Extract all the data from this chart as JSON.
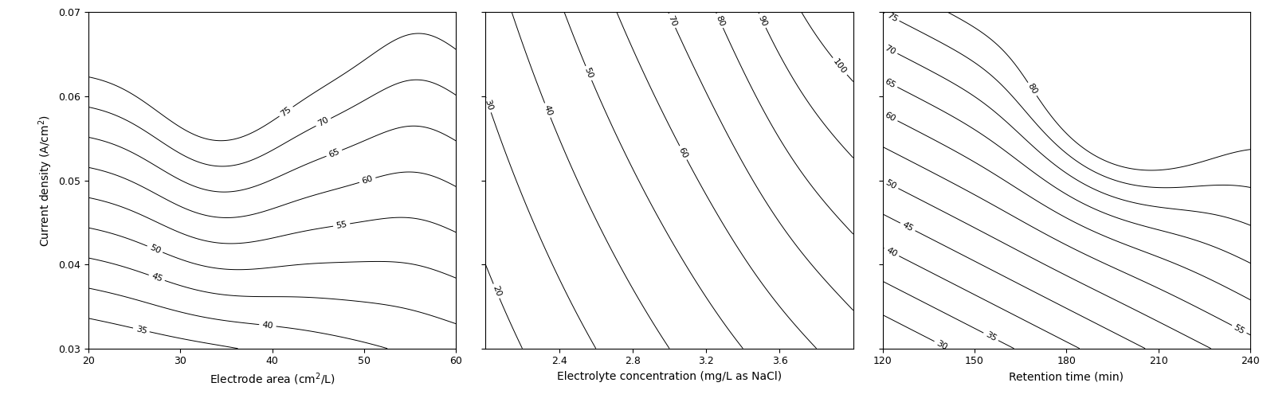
{
  "plot1": {
    "xlabel": "Electrode area (cm$^2$/L)",
    "xlim": [
      20,
      60
    ],
    "xticks": [
      20,
      30,
      40,
      50,
      60
    ],
    "levels": [
      35,
      40,
      45,
      50,
      55,
      60,
      65,
      70,
      75
    ]
  },
  "plot2": {
    "xlabel": "Electrolyte concentration (mg/L as NaCl)",
    "xlim": [
      2.0,
      4.0
    ],
    "xticks": [
      2.4,
      2.8,
      3.2,
      3.6
    ],
    "levels": [
      20,
      30,
      40,
      50,
      60,
      70,
      80,
      90,
      100
    ]
  },
  "plot3": {
    "xlabel": "Retention time (min)",
    "xlim": [
      120,
      240
    ],
    "xticks": [
      120,
      150,
      180,
      210,
      240
    ],
    "levels": [
      30,
      35,
      40,
      45,
      50,
      55,
      60,
      65,
      70,
      75,
      80
    ]
  },
  "ylabel": "Current density (A/cm$^2$)",
  "ylim": [
    0.03,
    0.07
  ],
  "yticks": [
    0.03,
    0.04,
    0.05,
    0.06,
    0.07
  ],
  "line_color": "black",
  "fontsize_label": 10,
  "fontsize_tick": 9,
  "fontsize_clabel": 8
}
